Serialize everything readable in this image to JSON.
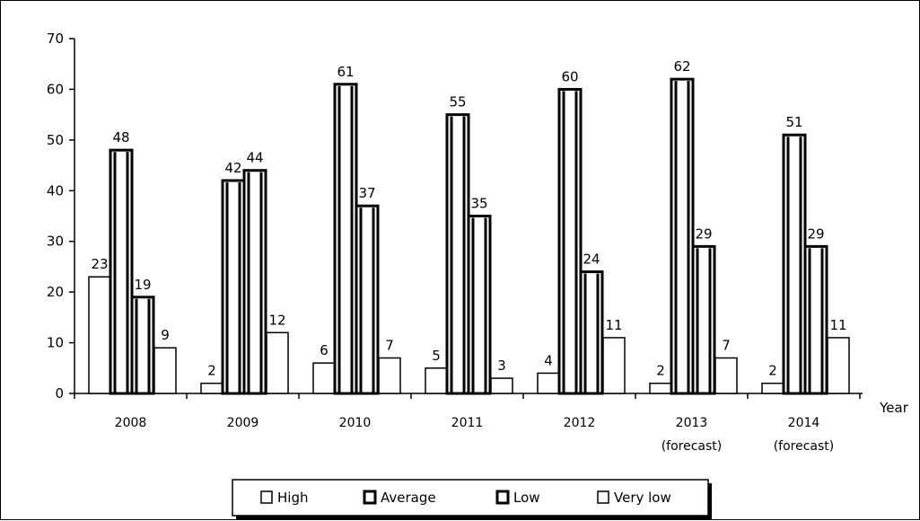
{
  "chart_data": {
    "type": "bar",
    "title": "",
    "xlabel": "Year",
    "ylabel": "",
    "ylim": [
      0,
      70
    ],
    "yticks": [
      0,
      10,
      20,
      30,
      40,
      50,
      60,
      70
    ],
    "grid": false,
    "legend_position": "bottom-center",
    "categories": [
      {
        "line1": "2008",
        "line2": ""
      },
      {
        "line1": "2009",
        "line2": ""
      },
      {
        "line1": "2010",
        "line2": ""
      },
      {
        "line1": "2011",
        "line2": ""
      },
      {
        "line1": "2012",
        "line2": ""
      },
      {
        "line1": "2013",
        "line2": "(forecast)"
      },
      {
        "line1": "2014",
        "line2": "(forecast)"
      }
    ],
    "series": [
      {
        "name": "High",
        "values": [
          23,
          2,
          6,
          5,
          4,
          2,
          2
        ],
        "style": "outline"
      },
      {
        "name": "Average",
        "values": [
          48,
          42,
          61,
          55,
          60,
          62,
          51
        ],
        "style": "bold-outline"
      },
      {
        "name": "Low",
        "values": [
          19,
          44,
          37,
          35,
          24,
          29,
          29
        ],
        "style": "bold-outline"
      },
      {
        "name": "Very low",
        "values": [
          9,
          12,
          7,
          3,
          11,
          7,
          11
        ],
        "style": "outline"
      }
    ]
  },
  "colors": {
    "ink": "#000000",
    "paper": "#ffffff"
  }
}
